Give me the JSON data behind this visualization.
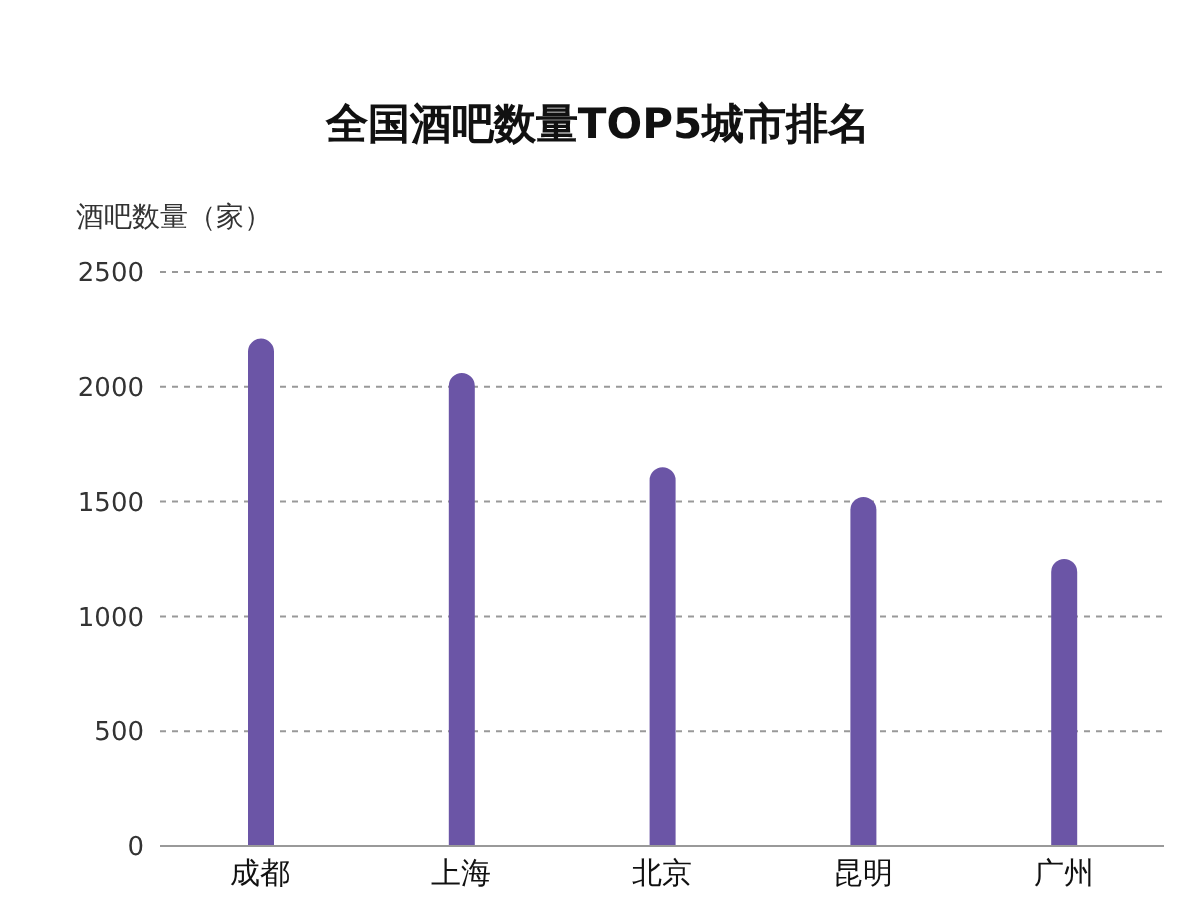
{
  "chart_data": {
    "type": "bar",
    "title": "全国酒吧数量TOP5城市排名",
    "ylabel": "酒吧数量（家）",
    "categories": [
      "成都",
      "上海",
      "北京",
      "昆明",
      "广州"
    ],
    "values": [
      2210,
      2060,
      1650,
      1520,
      1250
    ],
    "color": "#6b55a6",
    "ylim": [
      0,
      2500
    ],
    "yticks": [
      0,
      500,
      1000,
      1500,
      2000,
      2500
    ],
    "grid": "y",
    "legend": false
  }
}
